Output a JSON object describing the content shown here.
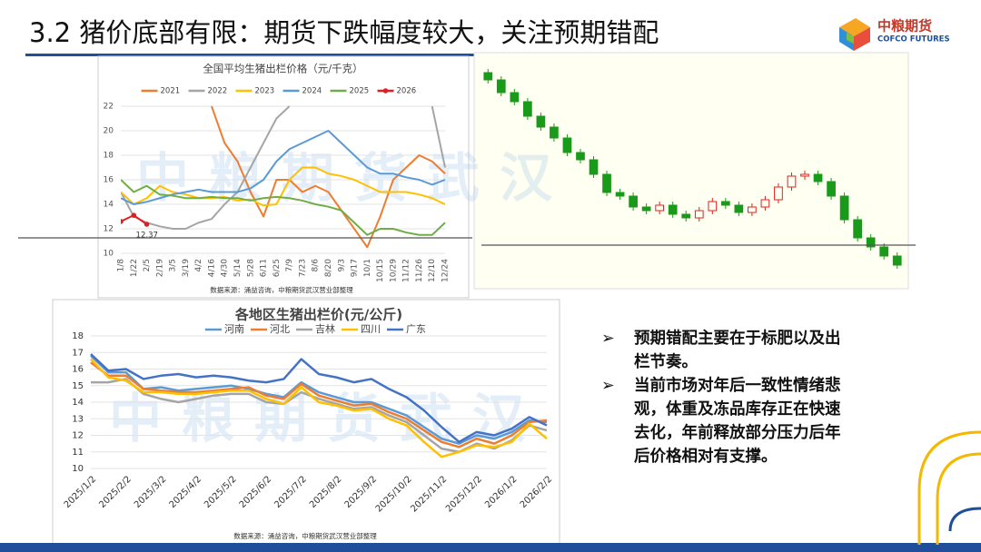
{
  "title": "3.2 猪价底部有限：期货下跌幅度较大，关注预期错配",
  "logo": {
    "name": "中粮期货",
    "english": "COFCO FUTURES"
  },
  "watermark": "中粮期货武汉",
  "bullets": [
    "预期错配主要在于标肥以及出栏节奏。",
    "当前市场对年后一致性情绪悲观，体重及冻品库存正在快速去化，年前释放部分压力后年后价格相对有支撑。"
  ],
  "chart_data": [
    {
      "type": "line",
      "title": "全国平均生猪出栏价格（元/千克）",
      "source": "数据来源：涌益咨询，中粮期货武汉营业部整理",
      "legend": "top",
      "categories": [
        "1/8",
        "1/22",
        "2/5",
        "2/19",
        "3/5",
        "3/19",
        "4/2",
        "4/16",
        "4/30",
        "5/14",
        "5/28",
        "6/11",
        "6/25",
        "7/9",
        "7/23",
        "8/6",
        "8/20",
        "9/3",
        "9/17",
        "10/1",
        "10/15",
        "10/29",
        "11/12",
        "11/26",
        "12/10",
        "12/24"
      ],
      "ylim": [
        10,
        22
      ],
      "yticks": [
        10,
        12,
        14,
        16,
        18,
        20,
        22
      ],
      "annotations": [
        {
          "text": "12.37",
          "x": "2/5",
          "y": 12.37
        }
      ],
      "series": [
        {
          "name": "2021",
          "color": "#ed7d31",
          "values": [
            null,
            null,
            null,
            null,
            null,
            null,
            null,
            22,
            19,
            17.5,
            15,
            13,
            16,
            16,
            15,
            15.5,
            15,
            13.5,
            12,
            10.5,
            13,
            16,
            17,
            18,
            17.5,
            16.5
          ]
        },
        {
          "name": "2022",
          "color": "#a5a5a5",
          "values": [
            15,
            13,
            12.5,
            12.2,
            12,
            12,
            12.5,
            12.8,
            14,
            15,
            17,
            19,
            21,
            22,
            null,
            null,
            null,
            null,
            null,
            null,
            null,
            null,
            null,
            null,
            22,
            17
          ]
        },
        {
          "name": "2023",
          "color": "#ffc000",
          "values": [
            15,
            14,
            14.5,
            15.5,
            15,
            14.8,
            14.5,
            14.5,
            14.6,
            14.3,
            14.4,
            13.9,
            14,
            16,
            17,
            17,
            16.5,
            16.3,
            16,
            15.5,
            15,
            15,
            15,
            14.8,
            14.5,
            14
          ]
        },
        {
          "name": "2024",
          "color": "#5b9bd5",
          "values": [
            14.5,
            14,
            14.2,
            14.5,
            14.8,
            15,
            15.2,
            15,
            15,
            15,
            15.3,
            16,
            17.5,
            18.5,
            19,
            19.5,
            20,
            19,
            18,
            17,
            16.5,
            16.5,
            16.2,
            16,
            15.6,
            16
          ]
        },
        {
          "name": "2025",
          "color": "#70ad47",
          "values": [
            16,
            15,
            15.5,
            14.8,
            14.7,
            14.5,
            14.5,
            14.6,
            14.5,
            14.5,
            14.3,
            14.5,
            14.6,
            14.5,
            14.3,
            14,
            13.8,
            13.5,
            12.5,
            11.5,
            12,
            12,
            11.7,
            11.5,
            11.5,
            12.5
          ]
        },
        {
          "name": "2026",
          "color": "#e02020",
          "marker": true,
          "values": [
            12.6,
            13.1,
            12.37,
            null,
            null,
            null,
            null,
            null,
            null,
            null,
            null,
            null,
            null,
            null,
            null,
            null,
            null,
            null,
            null,
            null,
            null,
            null,
            null,
            null,
            null,
            null
          ]
        }
      ]
    },
    {
      "type": "candlestick",
      "ylim": [
        11700,
        12900
      ],
      "up_color": "#e02020",
      "down_color": "#1a9a1a",
      "open": [
        12860,
        12820,
        12750,
        12700,
        12620,
        12560,
        12500,
        12420,
        12380,
        12300,
        12200,
        12180,
        12120,
        12100,
        12130,
        12080,
        12060,
        12100,
        12150,
        12130,
        12090,
        12120,
        12160,
        12230,
        12290,
        12300,
        12260,
        12180,
        12050,
        11950,
        11900,
        11850
      ],
      "close": [
        12820,
        12750,
        12700,
        12620,
        12560,
        12500,
        12420,
        12380,
        12300,
        12200,
        12180,
        12120,
        12100,
        12130,
        12080,
        12060,
        12100,
        12150,
        12130,
        12090,
        12120,
        12160,
        12230,
        12290,
        12300,
        12260,
        12180,
        12050,
        11950,
        11900,
        11850,
        11800
      ],
      "high": [
        12880,
        12840,
        12770,
        12720,
        12640,
        12580,
        12520,
        12440,
        12400,
        12320,
        12220,
        12200,
        12140,
        12150,
        12150,
        12100,
        12120,
        12170,
        12170,
        12150,
        12140,
        12180,
        12250,
        12310,
        12320,
        12320,
        12280,
        12200,
        12070,
        11970,
        11920,
        11870
      ],
      "low": [
        12800,
        12730,
        12680,
        12600,
        12540,
        12480,
        12400,
        12360,
        12280,
        12180,
        12160,
        12100,
        12080,
        12080,
        12060,
        12040,
        12040,
        12080,
        12110,
        12070,
        12070,
        12100,
        12140,
        12210,
        12270,
        12240,
        12160,
        12030,
        11930,
        11880,
        11830,
        11780
      ]
    },
    {
      "type": "line",
      "title": "各地区生猪出栏价(元/公斤)",
      "source": "数据来源：涌益咨询，中粮期货武汉营业部整理",
      "legend": "top",
      "categories": [
        "2025/1/2",
        null,
        "2025/2/2",
        null,
        "2025/3/2",
        null,
        "2025/4/2",
        null,
        "2025/5/2",
        null,
        "2025/6/2",
        null,
        "2025/7/2",
        null,
        "2025/8/2",
        null,
        "2025/9/2",
        null,
        "2025/10/2",
        null,
        "2025/11/2",
        null,
        "2025/12/2",
        null,
        "2026/1/2",
        null,
        "2026/2/2"
      ],
      "ylim": [
        10,
        18
      ],
      "yticks": [
        10,
        11,
        12,
        13,
        14,
        15,
        16,
        17,
        18
      ],
      "series": [
        {
          "name": "河南",
          "color": "#5b9bd5",
          "values": [
            16.8,
            15.8,
            15.8,
            14.8,
            14.9,
            14.7,
            14.8,
            14.9,
            15.0,
            14.8,
            14.5,
            14.3,
            15.2,
            14.6,
            14.3,
            14.0,
            14.0,
            13.6,
            13.2,
            12.5,
            11.8,
            11.5,
            12.0,
            11.8,
            12.2,
            12.9,
            12.8
          ]
        },
        {
          "name": "河北",
          "color": "#ed7d31",
          "values": [
            16.4,
            15.6,
            15.6,
            14.8,
            14.7,
            14.6,
            14.6,
            14.7,
            14.8,
            14.9,
            14.4,
            14.2,
            15.1,
            14.4,
            14.1,
            13.8,
            13.9,
            13.4,
            13.0,
            12.3,
            11.6,
            11.3,
            11.8,
            11.5,
            12.0,
            12.8,
            12.9
          ]
        },
        {
          "name": "吉林",
          "color": "#a5a5a5",
          "values": [
            15.2,
            15.2,
            15.4,
            14.5,
            14.2,
            14.0,
            14.2,
            14.4,
            14.5,
            14.5,
            14.0,
            13.9,
            14.6,
            14.2,
            13.9,
            13.6,
            13.7,
            13.2,
            12.8,
            12.0,
            11.2,
            11.0,
            11.5,
            11.2,
            11.7,
            12.6,
            12.3
          ]
        },
        {
          "name": "四川",
          "color": "#ffc000",
          "values": [
            16.6,
            15.5,
            15.3,
            14.6,
            14.6,
            14.5,
            14.5,
            14.6,
            14.7,
            14.7,
            14.2,
            13.9,
            14.9,
            14.0,
            13.8,
            13.5,
            13.6,
            13.0,
            12.6,
            11.6,
            10.7,
            11.0,
            11.4,
            11.3,
            11.6,
            12.7,
            11.8
          ]
        },
        {
          "name": "广东",
          "color": "#4472c4",
          "values": [
            16.9,
            15.9,
            16.0,
            15.4,
            15.6,
            15.7,
            15.5,
            15.6,
            15.5,
            15.3,
            15.2,
            15.4,
            16.6,
            15.7,
            15.5,
            15.2,
            15.4,
            14.8,
            14.3,
            13.5,
            12.5,
            11.6,
            12.2,
            12.0,
            12.4,
            13.1,
            12.6
          ]
        }
      ]
    }
  ]
}
